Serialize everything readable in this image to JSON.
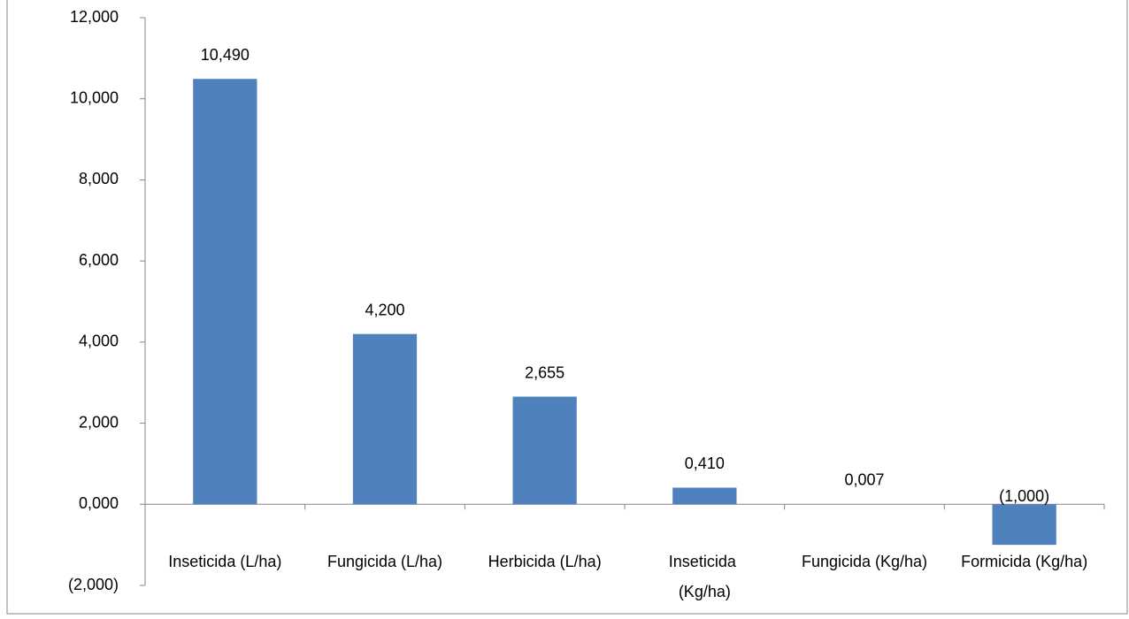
{
  "chart_data": {
    "type": "bar",
    "categories": [
      "Inseticida (L/ha)",
      "Fungicida (L/ha)",
      "Herbicida (L/ha)",
      "Inseticida (Kg/ha)",
      "Fungicida (Kg/ha)",
      "Formicida (Kg/ha)"
    ],
    "values": [
      10.49,
      4.2,
      2.655,
      0.41,
      0.007,
      -1
    ],
    "value_labels": [
      "10,490",
      "4,200",
      "2,655",
      "0,410",
      "0,007",
      "(1,000)"
    ],
    "color": "#4f81bd",
    "ylim": [
      -2,
      12
    ],
    "yticks": [
      {
        "value": -2,
        "label": "(2,000)"
      },
      {
        "value": 0,
        "label": "0,000"
      },
      {
        "value": 2,
        "label": "2,000"
      },
      {
        "value": 4,
        "label": "4,000"
      },
      {
        "value": 6,
        "label": "6,000"
      },
      {
        "value": 8,
        "label": "8,000"
      },
      {
        "value": 10,
        "label": "10,000"
      },
      {
        "value": 12,
        "label": "12,000"
      }
    ],
    "grid": false
  }
}
